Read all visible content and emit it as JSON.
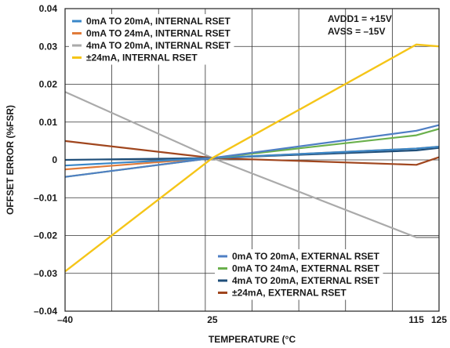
{
  "chart_data": {
    "type": "line",
    "title": "",
    "xlabel": "TEMPERATURE (°C",
    "ylabel": "OFFSET ERROR (%FSR)",
    "xlim": [
      -40,
      125
    ],
    "ylim": [
      -0.04,
      0.04
    ],
    "x_ticks": [
      -40,
      25,
      115,
      125
    ],
    "x_tick_labels": [
      "–40",
      "25",
      "115",
      "125"
    ],
    "y_ticks": [
      0.04,
      0.03,
      0.02,
      0.01,
      0,
      -0.01,
      -0.02,
      -0.03,
      -0.04
    ],
    "y_tick_labels": [
      "0.04",
      "0.03",
      "0.02",
      "0.01",
      "0",
      "–0.01",
      "–0.02",
      "–0.03",
      "–0.04"
    ],
    "grid": true,
    "annotation": [
      "AVDD1 = +15V",
      "AVSS = –15V"
    ],
    "legends": [
      {
        "placement": "top-left",
        "series": [
          0,
          1,
          2,
          3
        ]
      },
      {
        "placement": "bottom-right",
        "series": [
          4,
          5,
          6,
          7
        ]
      }
    ],
    "series": [
      {
        "name": "0mA TO 20mA, INTERNAL RSET",
        "color": "#3a87c8",
        "x": [
          -40,
          25,
          115,
          125
        ],
        "y": [
          -0.0015,
          0.0005,
          0.003,
          0.0035
        ]
      },
      {
        "name": "0mA TO 24mA, INTERNAL RSET",
        "color": "#e07b3a",
        "x": [
          -40,
          25,
          115,
          125
        ],
        "y": [
          -0.0025,
          0.0005,
          0.003,
          0.0035
        ]
      },
      {
        "name": "4mA TO 20mA, INTERNAL RSET",
        "color": "#aaaaaa",
        "x": [
          -40,
          25,
          115,
          125
        ],
        "y": [
          0.018,
          0.0005,
          -0.0205,
          -0.0205
        ]
      },
      {
        "name": "±24mA, INTERNAL RSET",
        "color": "#f5c518",
        "x": [
          -40,
          25,
          115,
          125
        ],
        "y": [
          -0.0295,
          0.0005,
          0.0305,
          0.03
        ]
      },
      {
        "name": "0mA TO 20mA, EXTERNAL RSET",
        "color": "#4f7fc4",
        "x": [
          -40,
          25,
          115,
          125
        ],
        "y": [
          -0.0045,
          0.0005,
          0.0077,
          0.0092
        ]
      },
      {
        "name": "0mA TO 24mA, EXTERNAL RSET",
        "color": "#6ab04c",
        "x": [
          -40,
          25,
          115,
          125
        ],
        "y": [
          -0.0045,
          0.0005,
          0.0065,
          0.0082
        ]
      },
      {
        "name": "4mA TO 20mA, EXTERNAL RSET",
        "color": "#1f4e79",
        "x": [
          -40,
          25,
          115,
          125
        ],
        "y": [
          0,
          0.0005,
          0.0025,
          0.0032
        ]
      },
      {
        "name": "±24mA, EXTERNAL RSET",
        "color": "#a0461e",
        "x": [
          -40,
          25,
          115,
          125
        ],
        "y": [
          0.005,
          0.0005,
          -0.0013,
          0.0007
        ]
      }
    ]
  }
}
